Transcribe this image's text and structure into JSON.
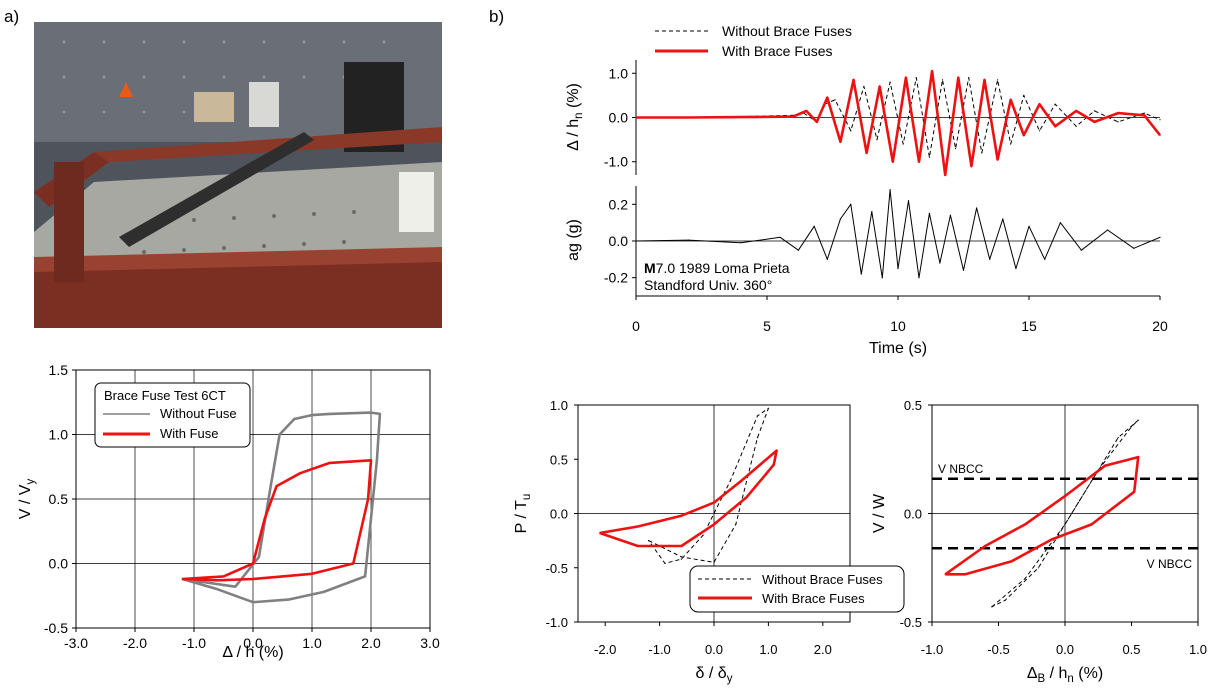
{
  "panel_labels": {
    "a": "a)",
    "b": "b)"
  },
  "photo": {
    "alt": "laboratory test setup with diagonal brace on red steel frame",
    "colors": {
      "wall": "#5d6068",
      "frame": "#7a2f22",
      "floor": "#a9a9a2"
    }
  },
  "chart_data": [
    {
      "id": "hysteresis-test",
      "type": "line",
      "xlabel": "Δ / h (%)",
      "ylabel": "V / Vy",
      "xlim": [
        -3.0,
        3.0
      ],
      "ylim": [
        -0.5,
        1.5
      ],
      "xticks": [
        "-3.0",
        "-2.0",
        "-1.0",
        "0.0",
        "1.0",
        "2.0",
        "3.0"
      ],
      "yticks": [
        "-0.5",
        "0.0",
        "0.5",
        "1.0",
        "1.5"
      ],
      "grid": true,
      "legend": {
        "position": "top-left",
        "title": "Brace Fuse Test 6CT"
      },
      "series": [
        {
          "name": "Without Fuse",
          "color": "#808080",
          "x": [
            -1.2,
            -0.3,
            0.1,
            0.3,
            0.45,
            0.7,
            1.0,
            1.3,
            2.0,
            2.15,
            2.1,
            1.9,
            1.2,
            0.6,
            0.0,
            -0.6,
            -1.2
          ],
          "y": [
            -0.12,
            -0.18,
            0.05,
            0.6,
            1.0,
            1.12,
            1.15,
            1.16,
            1.17,
            1.16,
            0.8,
            -0.1,
            -0.22,
            -0.28,
            -0.3,
            -0.2,
            -0.12
          ]
        },
        {
          "name": "With Fuse",
          "color": "#ee1111",
          "x": [
            -1.2,
            -0.5,
            0.0,
            0.2,
            0.4,
            0.8,
            1.3,
            2.0,
            1.95,
            1.7,
            1.0,
            0.0,
            -0.6,
            -1.2
          ],
          "y": [
            -0.12,
            -0.1,
            0.0,
            0.35,
            0.6,
            0.7,
            0.78,
            0.8,
            0.5,
            0.0,
            -0.08,
            -0.12,
            -0.13,
            -0.12
          ]
        }
      ]
    },
    {
      "id": "drift-history",
      "type": "line",
      "xlabel": "Time (s)",
      "ylabel": "Δ / hn (%)",
      "xlim": [
        0,
        20
      ],
      "ylim": [
        -1.3,
        1.3
      ],
      "xticks": [
        "0",
        "5",
        "10",
        "15",
        "20"
      ],
      "yticks": [
        "-1.0",
        "0.0",
        "1.0"
      ],
      "grid": false,
      "legend": {
        "position": "top"
      },
      "series": [
        {
          "name": "Without Brace Fuses",
          "color": "#000000",
          "dash": true,
          "x": [
            0,
            2,
            4,
            6,
            6.4,
            6.9,
            7.2,
            7.6,
            8.2,
            8.7,
            9.2,
            9.7,
            10.2,
            10.7,
            11.2,
            11.7,
            12.2,
            12.7,
            13.2,
            13.8,
            14.3,
            14.8,
            15.4,
            16,
            16.8,
            17.5,
            18.4,
            19.4,
            20
          ],
          "y": [
            0,
            0.01,
            0.02,
            0.05,
            0.1,
            -0.1,
            0.3,
            0.4,
            -0.3,
            0.7,
            -0.5,
            0.8,
            -0.6,
            0.9,
            -0.9,
            0.85,
            -0.7,
            0.9,
            -0.8,
            0.85,
            -0.6,
            0.5,
            -0.3,
            0.3,
            -0.2,
            0.15,
            -0.1,
            0.1,
            -0.05
          ]
        },
        {
          "name": "With Brace Fuses",
          "color": "#ee1111",
          "x": [
            0,
            2,
            4,
            6,
            6.5,
            6.9,
            7.3,
            7.8,
            8.3,
            8.8,
            9.3,
            9.8,
            10.3,
            10.8,
            11.3,
            11.8,
            12.3,
            12.8,
            13.3,
            13.8,
            14.3,
            14.8,
            15.4,
            16,
            16.8,
            17.5,
            18.4,
            19.4,
            20
          ],
          "y": [
            0,
            0.0,
            0.01,
            0.02,
            0.15,
            -0.1,
            0.45,
            -0.55,
            0.85,
            -0.8,
            0.7,
            -1.0,
            0.9,
            -1.0,
            1.05,
            -1.3,
            0.9,
            -1.1,
            0.85,
            -0.95,
            0.4,
            -0.4,
            0.3,
            -0.2,
            0.15,
            -0.1,
            0.1,
            0.05,
            -0.4
          ]
        }
      ]
    },
    {
      "id": "ground-motion",
      "type": "line",
      "xlabel": "",
      "ylabel": "ag (g)",
      "xlim": [
        0,
        20
      ],
      "ylim": [
        -0.3,
        0.3
      ],
      "yticks": [
        "-0.2",
        "0.0",
        "0.2"
      ],
      "annotation": {
        "line1_bold": "M",
        "line1": "7.0 1989 Loma Prieta",
        "line2": "Standford Univ. 360°"
      },
      "series": [
        {
          "name": "",
          "color": "#000000",
          "x": [
            0,
            2,
            4,
            5.5,
            6.2,
            6.8,
            7.3,
            7.8,
            8.2,
            8.6,
            9.0,
            9.4,
            9.7,
            10.0,
            10.4,
            10.8,
            11.2,
            11.6,
            12.0,
            12.5,
            13.0,
            13.5,
            14.0,
            14.5,
            15.0,
            15.6,
            16.2,
            17.0,
            18.0,
            19.0,
            20
          ],
          "y": [
            0,
            0.005,
            -0.01,
            0.02,
            -0.05,
            0.08,
            -0.1,
            0.12,
            0.2,
            -0.18,
            0.16,
            -0.2,
            0.28,
            -0.15,
            0.22,
            -0.2,
            0.15,
            -0.12,
            0.14,
            -0.16,
            0.18,
            -0.1,
            0.12,
            -0.15,
            0.08,
            -0.1,
            0.1,
            -0.05,
            0.06,
            -0.04,
            0.02
          ]
        }
      ]
    },
    {
      "id": "axial-hysteresis",
      "type": "line",
      "xlabel": "δ / δy",
      "ylabel": "P / Tu",
      "xlim": [
        -2.5,
        2.5
      ],
      "ylim": [
        -1.0,
        1.0
      ],
      "xticks": [
        "-2.0",
        "-1.0",
        "0.0",
        "1.0",
        "2.0"
      ],
      "yticks": [
        "-1.0",
        "-0.5",
        "0.0",
        "0.5",
        "1.0"
      ],
      "grid": false,
      "legend": {
        "position": "bottom-center"
      },
      "series": [
        {
          "name": "Without Brace Fuses",
          "color": "#000000",
          "dash": true,
          "x": [
            -1.2,
            -0.6,
            0.0,
            0.4,
            0.8,
            1.0,
            0.8,
            0.3,
            -0.2,
            -0.6,
            -0.9,
            -1.2
          ],
          "y": [
            -0.25,
            -0.4,
            -0.45,
            -0.1,
            0.7,
            0.97,
            0.9,
            0.3,
            -0.2,
            -0.42,
            -0.46,
            -0.25
          ]
        },
        {
          "name": "With Brace Fuses",
          "color": "#ee1111",
          "x": [
            -2.1,
            -1.4,
            -0.6,
            0.0,
            0.5,
            1.15,
            1.1,
            0.6,
            0.0,
            -0.6,
            -1.4,
            -2.1
          ],
          "y": [
            -0.18,
            -0.12,
            -0.02,
            0.1,
            0.3,
            0.58,
            0.45,
            0.15,
            -0.1,
            -0.3,
            -0.3,
            -0.18
          ]
        }
      ]
    },
    {
      "id": "story-shear",
      "type": "line",
      "xlabel": "ΔB / hn (%)",
      "ylabel": "V / W",
      "xlim": [
        -1.0,
        1.0
      ],
      "ylim": [
        -0.5,
        0.5
      ],
      "xticks": [
        "-1.0",
        "-0.5",
        "0.0",
        "0.5",
        "1.0"
      ],
      "yticks": [
        "-0.5",
        "0.0",
        "0.5"
      ],
      "grid": false,
      "reference_lines": [
        {
          "label": "V NBCC",
          "y": 0.16,
          "label_position": "top-left"
        },
        {
          "label": "V NBCC",
          "y": -0.16,
          "label_position": "bottom-right"
        }
      ],
      "series": [
        {
          "name": "Without Brace Fuses",
          "color": "#000000",
          "dash": true,
          "x": [
            -0.55,
            -0.3,
            0.0,
            0.25,
            0.5,
            0.55,
            0.4,
            0.1,
            -0.2,
            -0.45,
            -0.55
          ],
          "y": [
            -0.43,
            -0.3,
            -0.05,
            0.2,
            0.4,
            0.43,
            0.35,
            0.05,
            -0.25,
            -0.4,
            -0.43
          ]
        },
        {
          "name": "With Brace Fuses",
          "color": "#ee1111",
          "x": [
            -0.9,
            -0.6,
            -0.3,
            0.0,
            0.3,
            0.55,
            0.52,
            0.2,
            -0.1,
            -0.4,
            -0.75,
            -0.9
          ],
          "y": [
            -0.28,
            -0.15,
            -0.05,
            0.08,
            0.22,
            0.26,
            0.1,
            -0.05,
            -0.12,
            -0.22,
            -0.28,
            -0.28
          ]
        }
      ]
    }
  ]
}
